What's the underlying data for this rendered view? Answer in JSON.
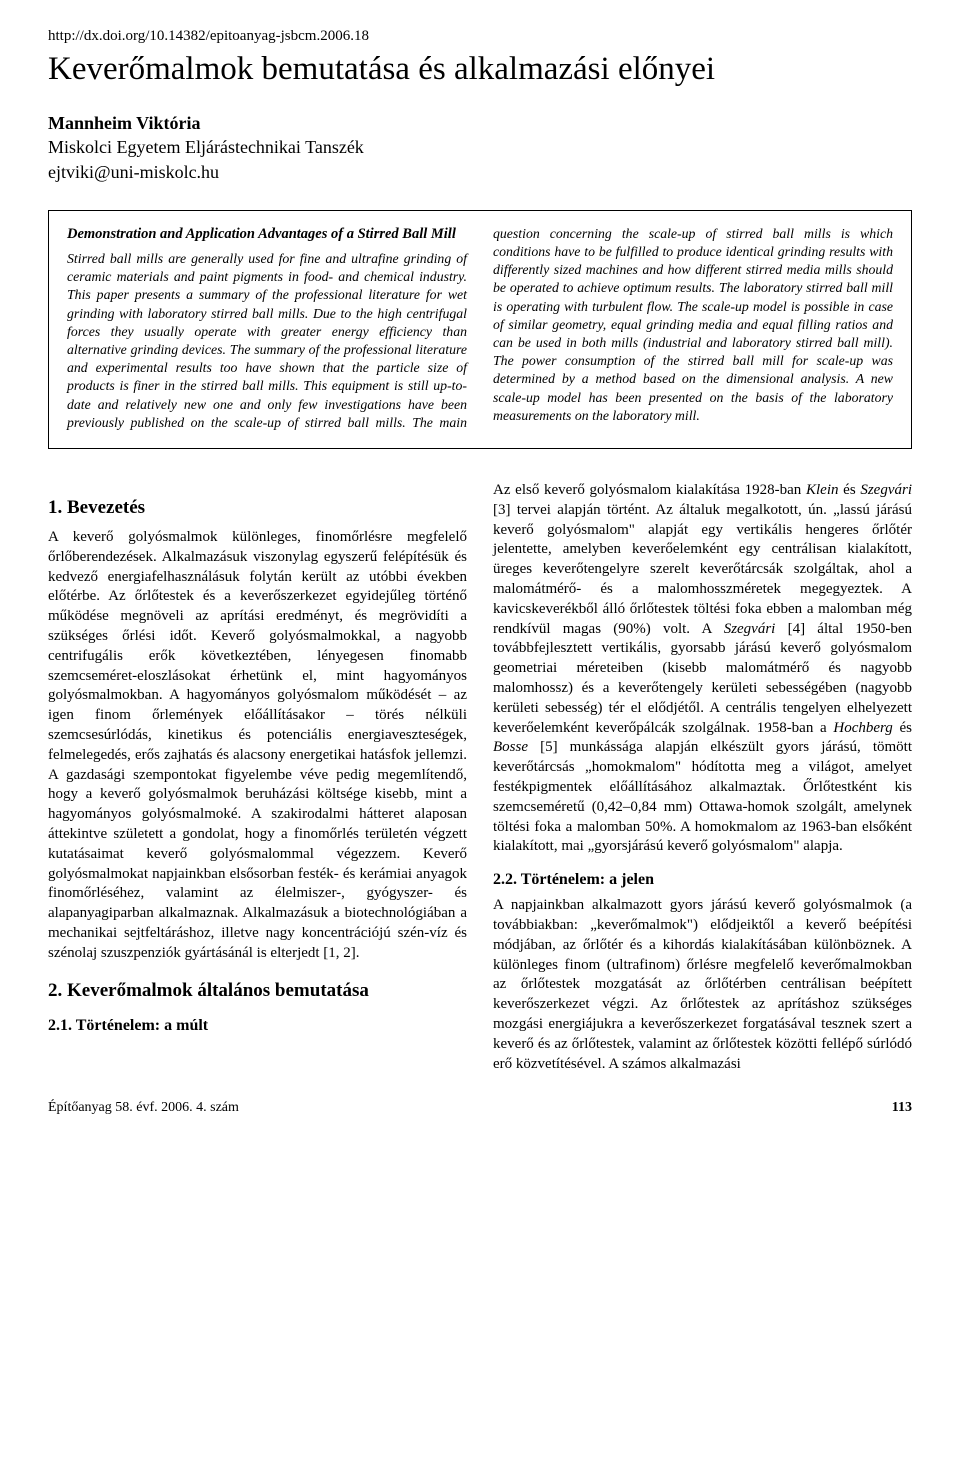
{
  "doi": "http://dx.doi.org/10.14382/epitoanyag-jsbcm.2006.18",
  "title": "Keverőmalmok bemutatása és alkalmazási előnyei",
  "author_name": "Mannheim Viktória",
  "author_affil": "Miskolci Egyetem Eljárástechnikai Tanszék",
  "author_email": "ejtviki@uni-miskolc.hu",
  "abstract_title": "Demonstration and Application Advantages of a Stirred Ball Mill",
  "abstract_body": "Stirred ball mills are generally used for fine and ultrafine grinding of ceramic materials and paint pigments in food- and chemical industry. This paper presents a summary of the professional literature for wet grinding with laboratory stirred ball mills. Due to the high centrifugal forces they usually operate with greater energy efficiency than alternative grinding devices. The summary of the professional literature and experimental results too have shown that the particle size of products is finer in the stirred ball mills. This equipment is still up-to-date and relatively new one and only few investigations have been previously published on the scale-up of stirred ball mills. The main question concerning the scale-up of stirred ball mills is which conditions have to be fulfilled to produce identical grinding results with differently sized machines and how different stirred media mills should be operated to achieve optimum results. The laboratory stirred ball mill is operating with turbulent flow. The scale-up model is possible in case of similar geometry, equal grinding media and equal filling ratios and can be used in both mills (industrial and laboratory stirred ball mill). The power consumption of the stirred ball mill for scale-up was determined by a method based on the dimensional analysis. A new scale-up model has been presented on the basis of the laboratory measurements on the laboratory mill.",
  "h_intro": "1. Bevezetés",
  "p_intro": "A keverő golyósmalmok különleges, finomőrlésre megfelelő őrlőberendezések. Alkalmazásuk viszonylag egyszerű felépítésük és kedvező energiafelhasználásuk folytán került az utóbbi években előtérbe. Az őrlőtestek és a keverőszerkezet egyidejűleg történő működése megnöveli az aprítási eredményt, és megrövidíti a szükséges őrlési időt. Keverő golyósmalmokkal, a nagyobb centrifugális erők következtében, lényegesen finomabb szemcseméret-eloszlásokat érhetünk el, mint hagyományos golyósmalmokban. A hagyományos golyósmalom működését – az igen finom őrlemények előállításakor – törés nélküli szemcsesúrlódás, kinetikus és potenciális energiaveszteségek, felmelegedés, erős zajhatás és alacsony energetikai hatásfok jellemzi. A gazdasági szempontokat figyelembe véve pedig megemlítendő, hogy a keverő golyósmalmok beruházási költsége kisebb, mint a hagyományos golyósmalmoké. A szakirodalmi hátteret alaposan áttekintve született a gondolat, hogy a finomőrlés területén végzett kutatásaimat keverő golyósmalommal végezzem. Keverő golyósmalmokat napjainkban elsősorban festék- és kerámiai anyagok finomőrléséhez, valamint az élelmiszer-, gyógyszer- és alapanyagiparban alkalmaznak. Alkalmazásuk a biotechnológiában a mechanikai sejtfeltáráshoz, illetve nagy koncentrációjú szén-víz és szénolaj szuszpenziók gyártásánál is elterjedt [1, 2].",
  "h_general": "2. Keverőmalmok általános bemutatása",
  "h_hist_past": "2.1. Történelem: a múlt",
  "p_hist_past_a": "Az első keverő golyósmalom kialakítása 1928-ban ",
  "p_hist_past_b_italic": "Klein",
  "p_hist_past_c": " és ",
  "p_hist_past_d_italic": "Szegvári",
  "p_hist_past_e": " [3] tervei alapján történt. Az általuk megalkotott, ún. „lassú járású keverő golyósmalom\" alapját egy vertikális hengeres őrlőtér jelentette, amelyben keverőelemként egy centrálisan kialakított, üreges keverőtengelyre szerelt keverőtárcsák szolgáltak, ahol a malomátmérő- és a malomhosszméretek megegyeztek. A kavicskeverékből álló őrlőtestek töltési foka ebben a malomban még rendkívül magas (90%) volt. A ",
  "p_hist_past_f_italic": "Szegvári",
  "p_hist_past_g": " [4] által 1950-ben továbbfejlesztett vertikális, gyorsabb járású keverő golyósmalom geometriai méreteiben (kisebb malomátmérő és nagyobb malomhossz) és a keverőtengely kerületi sebességében (nagyobb kerületi sebesség) tér el elődjétől. A centrális tengelyen elhelyezett keverőelemként keverőpálcák szolgálnak. 1958-ban a ",
  "p_hist_past_h_italic": "Hochberg",
  "p_hist_past_i": " és ",
  "p_hist_past_j_italic": "Bosse",
  "p_hist_past_k": " [5] munkássága alapján elkészült gyors járású, tömött keverőtárcsás „homokmalom\" hódította meg a világot, amelyet festékpigmentek előállításához alkalmaztak. Őrlőtestként kis szemcseméretű (0,42–0,84 mm) Ottawa-homok szolgált, amelynek töltési foka a malomban 50%. A homokmalom az 1963-ban elsőként kialakított, mai „gyorsjárású keverő golyósmalom\" alapja.",
  "h_hist_now": "2.2. Történelem: a jelen",
  "p_hist_now": "A napjainkban alkalmazott gyors járású keverő golyósmalmok (a továbbiakban: „keverőmalmok\") elődjeiktől a keverő beépítési módjában, az őrlőtér és a kihordás kialakításában különböznek. A különleges finom (ultrafinom) őrlésre megfelelő keverőmalmokban az őrlőtestek mozgatását az őrlőtérben centrálisan beépített keverőszerkezet végzi. Az őrlőtestek az aprításhoz szükséges mozgási energiájukra a keverőszerkezet forgatásával tesznek szert a keverő és az őrlőtestek, valamint az őrlőtestek közötti fellépő súrlódó erő közvetítésével. A számos alkalmazási",
  "footer_issue": "Építőanyag 58. évf. 2006. 4. szám",
  "footer_page": "113"
}
